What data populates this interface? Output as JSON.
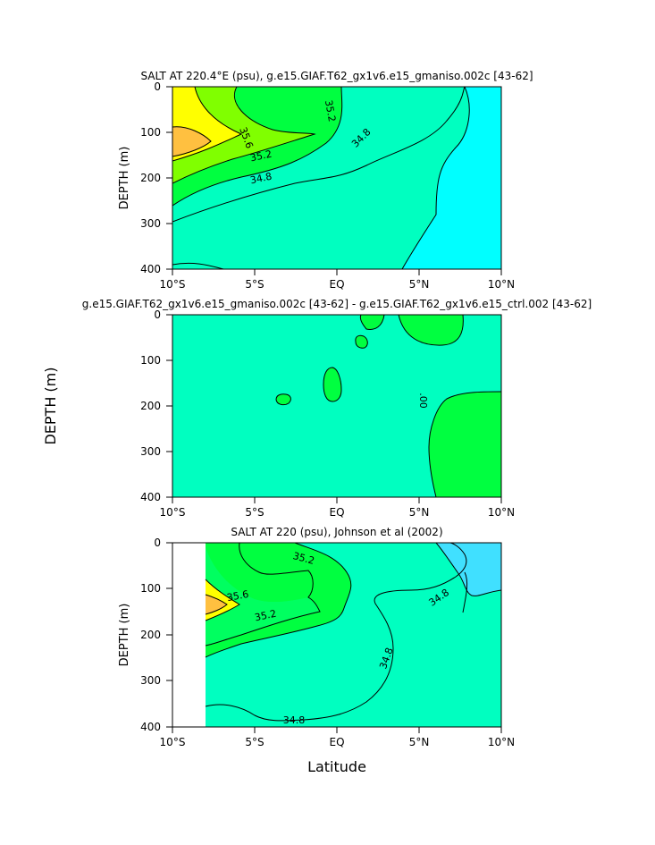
{
  "chart_data": [
    {
      "type": "heatmap",
      "title": "SALT AT 220.4°E (psu), g.e15.GIAF.T62_gx1v6.e15_gmaniso.002c [43-62]",
      "ylabel": "DEPTH (m)",
      "xlim": [
        -10,
        10
      ],
      "ylim": [
        400,
        0
      ],
      "xticks": [
        "10°S",
        "5°S",
        "EQ",
        "5°N",
        "10°N"
      ],
      "yticks": [
        "0",
        "100",
        "200",
        "300",
        "400"
      ],
      "contour_labels": [
        "35.2",
        "35.6",
        "35.2",
        "34.8",
        "34.8"
      ],
      "colors": {
        "fresh": "#00ffff",
        "mid": "#00ffc0",
        "salty": "#00ff40",
        "more_salty": "#80ff00",
        "high": "#ffff00",
        "max": "#ffc040"
      }
    },
    {
      "type": "heatmap",
      "title": "g.e15.GIAF.T62_gx1v6.e15_gmaniso.002c [43-62] - g.e15.GIAF.T62_gx1v6.e15_ctrl.002 [43-62]",
      "xlim": [
        -10,
        10
      ],
      "ylim": [
        400,
        0
      ],
      "xticks": [
        "10°S",
        "5°S",
        "EQ",
        "5°N",
        "10°N"
      ],
      "yticks": [
        "0",
        "100",
        "200",
        "300",
        "400"
      ],
      "contour_labels": [
        ".00"
      ],
      "colors": {
        "base": "#00ffc0",
        "positive": "#00ff40"
      }
    },
    {
      "type": "heatmap",
      "title": "SALT AT 220 (psu), Johnson et al (2002)",
      "ylabel": "DEPTH (m)",
      "xlabel": "Latitude",
      "xlim": [
        -10,
        10
      ],
      "ylim": [
        400,
        0
      ],
      "xticks": [
        "10°S",
        "5°S",
        "EQ",
        "5°N",
        "10°N"
      ],
      "yticks": [
        "0",
        "100",
        "200",
        "300",
        "400"
      ],
      "contour_labels": [
        "35.2",
        "35.6",
        "35.2",
        "34.8",
        "34.8",
        "34.8"
      ],
      "colors": {
        "fresh": "#00ffff",
        "mid": "#00ffc0",
        "salty": "#00ff40",
        "more_salty": "#80ff00",
        "high": "#ffff00",
        "max": "#ffc040"
      }
    }
  ],
  "figure": {
    "shared_ylabel": "DEPTH (m)"
  }
}
